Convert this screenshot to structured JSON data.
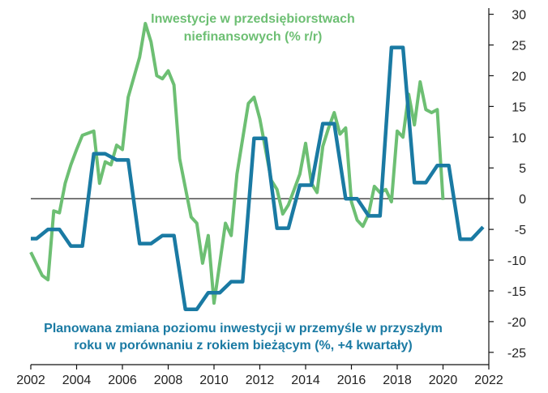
{
  "chart_data": {
    "type": "line",
    "title": "",
    "xlabel": "",
    "ylabel": "",
    "xlim": [
      2002,
      2022
    ],
    "ylim": [
      -27,
      31
    ],
    "x_ticks": [
      2002,
      2004,
      2006,
      2008,
      2010,
      2012,
      2014,
      2016,
      2018,
      2020,
      2022
    ],
    "x_tick_labels": [
      "2002",
      "2004",
      "2006",
      "2008",
      "2010",
      "2012",
      "2014",
      "2016",
      "2018",
      "2020",
      "2022"
    ],
    "y_ticks": [
      30,
      25,
      20,
      15,
      10,
      5,
      0,
      -5,
      -10,
      -15,
      -20,
      -25
    ],
    "y_tick_labels": [
      "30",
      "25",
      "20",
      "15",
      "10",
      "5",
      "0",
      "-5",
      "-10",
      "-15",
      "-20",
      "-25"
    ],
    "y_axis_position": "right",
    "zero_line": true,
    "series": [
      {
        "name": "Inwestycje w przedsiębiorstwach niefinansowych (% r/r)",
        "label_lines": [
          "Inwestycje w przedsiębiorstwach",
          "niefinansowych (% r/r)"
        ],
        "color": "#6dbf73",
        "points": [
          [
            2002.0,
            -8.7
          ],
          [
            2002.5,
            -12.5
          ],
          [
            2002.75,
            -13.2
          ],
          [
            2003.0,
            -2.0
          ],
          [
            2003.25,
            -2.3
          ],
          [
            2003.5,
            2.5
          ],
          [
            2003.75,
            5.5
          ],
          [
            2004.0,
            8.0
          ],
          [
            2004.25,
            10.3
          ],
          [
            2004.75,
            11.0
          ],
          [
            2005.0,
            2.5
          ],
          [
            2005.25,
            6.0
          ],
          [
            2005.5,
            5.5
          ],
          [
            2005.75,
            8.7
          ],
          [
            2006.0,
            8.0
          ],
          [
            2006.25,
            16.5
          ],
          [
            2006.75,
            23.0
          ],
          [
            2007.0,
            28.5
          ],
          [
            2007.25,
            25.5
          ],
          [
            2007.5,
            20.0
          ],
          [
            2007.75,
            19.5
          ],
          [
            2008.0,
            20.8
          ],
          [
            2008.25,
            18.5
          ],
          [
            2008.5,
            6.5
          ],
          [
            2009.0,
            -3.0
          ],
          [
            2009.25,
            -4.0
          ],
          [
            2009.5,
            -10.5
          ],
          [
            2009.75,
            -6.0
          ],
          [
            2010.0,
            -17.0
          ],
          [
            2010.25,
            -10.5
          ],
          [
            2010.5,
            -4.0
          ],
          [
            2010.75,
            -6.0
          ],
          [
            2011.0,
            4.0
          ],
          [
            2011.5,
            15.5
          ],
          [
            2011.75,
            16.5
          ],
          [
            2012.0,
            13.0
          ],
          [
            2012.25,
            8.0
          ],
          [
            2012.5,
            3.0
          ],
          [
            2012.75,
            1.5
          ],
          [
            2013.0,
            -2.5
          ],
          [
            2013.25,
            -1.0
          ],
          [
            2013.5,
            1.5
          ],
          [
            2013.75,
            4.0
          ],
          [
            2014.0,
            9.0
          ],
          [
            2014.25,
            2.5
          ],
          [
            2014.5,
            1.0
          ],
          [
            2014.75,
            8.5
          ],
          [
            2015.0,
            11.5
          ],
          [
            2015.25,
            14.0
          ],
          [
            2015.5,
            10.5
          ],
          [
            2015.75,
            11.5
          ],
          [
            2016.0,
            -0.5
          ],
          [
            2016.25,
            -3.5
          ],
          [
            2016.5,
            -4.5
          ],
          [
            2016.75,
            -2.5
          ],
          [
            2017.0,
            2.0
          ],
          [
            2017.25,
            1.0
          ],
          [
            2017.5,
            1.5
          ],
          [
            2017.75,
            -0.5
          ],
          [
            2018.0,
            11.0
          ],
          [
            2018.25,
            10.0
          ],
          [
            2018.5,
            17.0
          ],
          [
            2018.75,
            12.0
          ],
          [
            2019.0,
            19.0
          ],
          [
            2019.25,
            14.5
          ],
          [
            2019.5,
            14.0
          ],
          [
            2019.75,
            14.5
          ],
          [
            2020.0,
            -0.2
          ]
        ]
      },
      {
        "name": "Planowana zmiana poziomu inwestycji w przemyśle w przyszłym roku w porównaniu z rokiem bieżącym (%, +4 kwartały)",
        "label_lines": [
          "Planowana zmiana poziomu inwestycji w przemyśle w przyszłym",
          "roku w porównaniu z rokiem bieżącym (%, +4 kwartały)"
        ],
        "color": "#1a7aa3",
        "points": [
          [
            2002.0,
            -6.5
          ],
          [
            2002.25,
            -6.5
          ],
          [
            2002.75,
            -5.0
          ],
          [
            2003.25,
            -5.0
          ],
          [
            2003.75,
            -7.7
          ],
          [
            2004.25,
            -7.7
          ],
          [
            2004.75,
            7.3
          ],
          [
            2005.25,
            7.3
          ],
          [
            2005.75,
            6.3
          ],
          [
            2006.25,
            6.3
          ],
          [
            2006.75,
            -7.3
          ],
          [
            2007.25,
            -7.3
          ],
          [
            2007.75,
            -6.0
          ],
          [
            2008.25,
            -6.0
          ],
          [
            2008.75,
            -18.0
          ],
          [
            2009.25,
            -18.0
          ],
          [
            2009.75,
            -15.3
          ],
          [
            2010.25,
            -15.3
          ],
          [
            2010.75,
            -13.5
          ],
          [
            2011.25,
            -13.5
          ],
          [
            2011.75,
            9.8
          ],
          [
            2012.25,
            9.8
          ],
          [
            2012.75,
            -4.8
          ],
          [
            2013.25,
            -4.8
          ],
          [
            2013.75,
            2.2
          ],
          [
            2014.25,
            2.2
          ],
          [
            2014.75,
            12.2
          ],
          [
            2015.25,
            12.2
          ],
          [
            2015.75,
            0.0
          ],
          [
            2016.25,
            0.0
          ],
          [
            2016.75,
            -2.8
          ],
          [
            2017.25,
            -2.8
          ],
          [
            2017.75,
            24.6
          ],
          [
            2018.25,
            24.6
          ],
          [
            2018.75,
            2.6
          ],
          [
            2019.25,
            2.6
          ],
          [
            2019.75,
            5.4
          ],
          [
            2020.25,
            5.4
          ],
          [
            2020.75,
            -6.6
          ],
          [
            2021.25,
            -6.6
          ],
          [
            2021.75,
            -4.6
          ]
        ]
      }
    ]
  }
}
